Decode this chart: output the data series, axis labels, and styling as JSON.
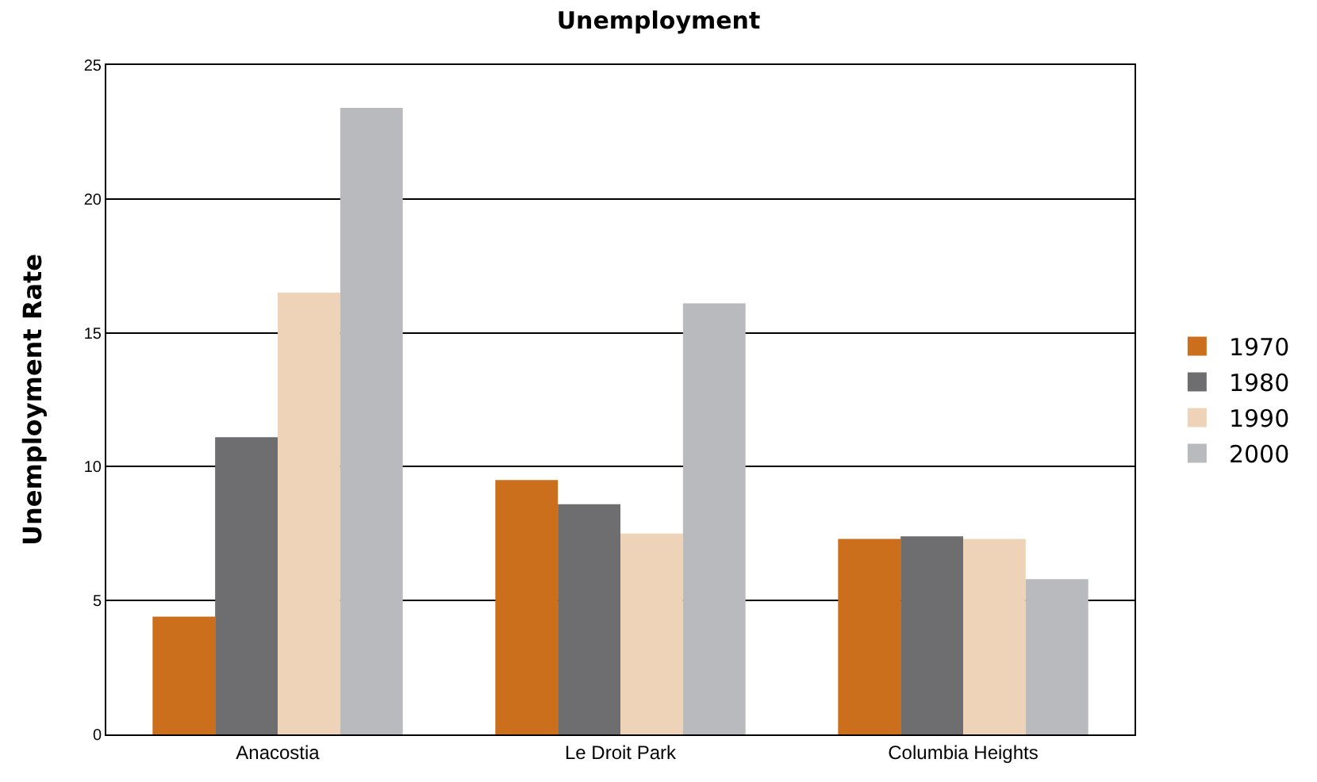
{
  "chart_data": {
    "type": "bar",
    "title": "Unemployment",
    "ylabel": "Unemployment Rate",
    "categories": [
      "Anacostia",
      "Le Droit Park",
      "Columbia Heights"
    ],
    "series": [
      {
        "name": "1970",
        "color": "#cc6f1c",
        "values": [
          4.4,
          9.5,
          7.3
        ]
      },
      {
        "name": "1980",
        "color": "#6e6e70",
        "values": [
          11.1,
          8.6,
          7.4
        ]
      },
      {
        "name": "1990",
        "color": "#efd3b9",
        "values": [
          16.5,
          7.5,
          7.3
        ]
      },
      {
        "name": "2000",
        "color": "#b9babe",
        "values": [
          23.4,
          16.1,
          5.8
        ]
      }
    ],
    "ylim": [
      0,
      25
    ],
    "yticks": [
      0,
      5,
      10,
      15,
      20,
      25
    ],
    "grid": "y",
    "legend": "right"
  }
}
